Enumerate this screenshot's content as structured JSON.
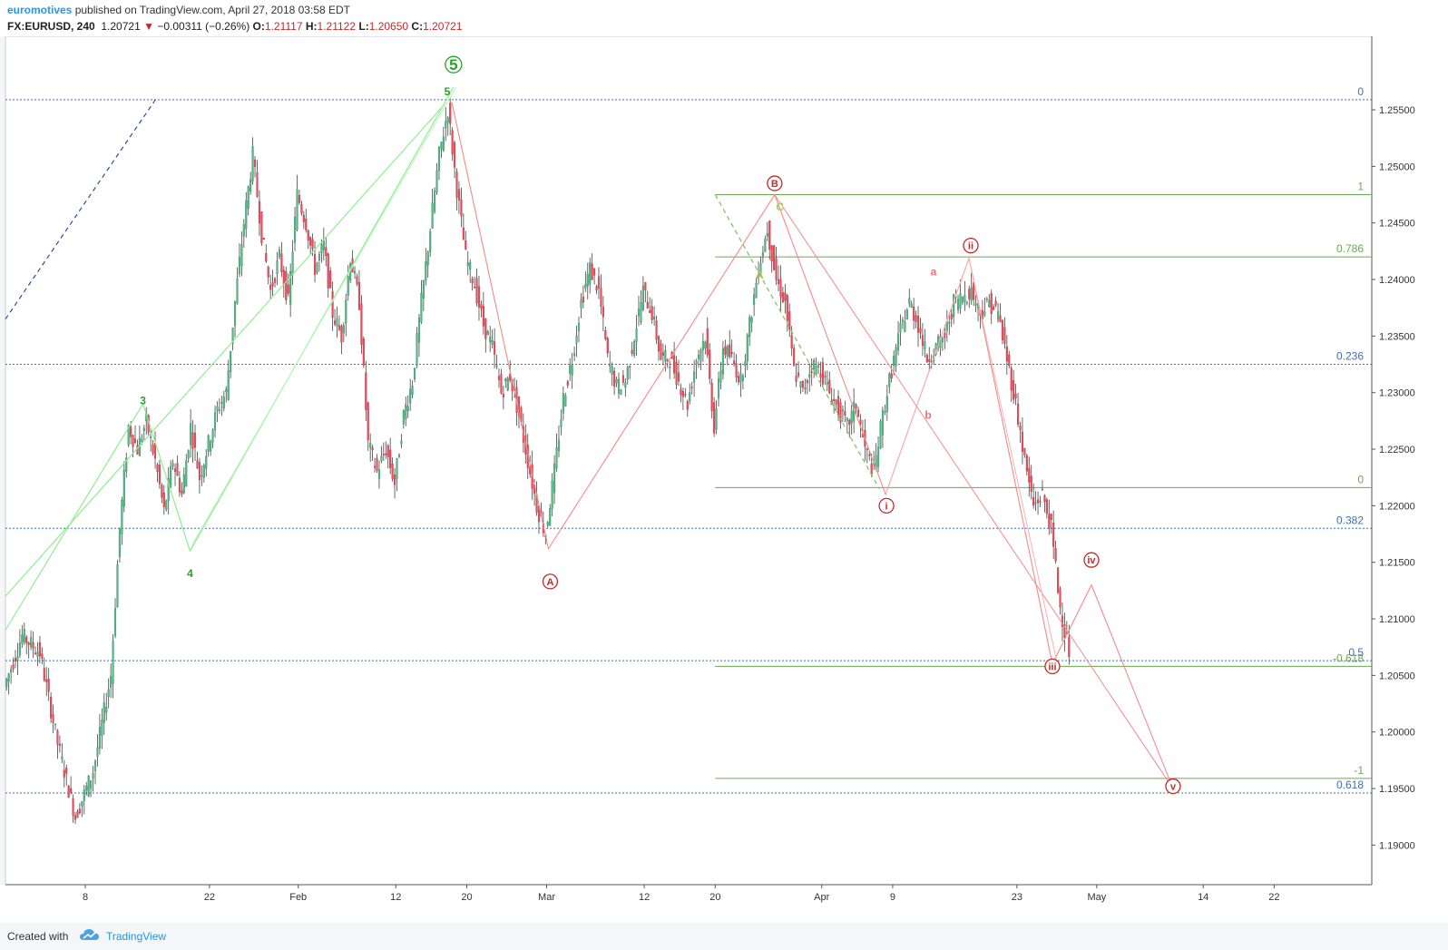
{
  "header": {
    "author": "euromotives",
    "published_text": " published on TradingView.com, April 27, 2018 03:58 EDT",
    "symbol": "FX:EURUSD, 240",
    "last": "1.20721",
    "change": "−0.00311 (−0.26%)",
    "o_label": "O:",
    "o_value": "1.21117",
    "h_label": "H:",
    "h_value": "1.21122",
    "l_label": "L:",
    "l_value": "1.20650",
    "c_label": "C:",
    "c_value": "1.20721"
  },
  "footer": {
    "created_with": "Created with",
    "brand": "TradingView"
  },
  "chart_data": {
    "type": "candlestick",
    "symbol": "FX:EURUSD",
    "timeframe": "240",
    "ylim": [
      1.1865,
      1.2615
    ],
    "y_ticks": [
      "1.25500",
      "1.25000",
      "1.24500",
      "1.24000",
      "1.23500",
      "1.23000",
      "1.22500",
      "1.22000",
      "1.21500",
      "1.21000",
      "1.20500",
      "1.20000",
      "1.19500",
      "1.19000"
    ],
    "y_tick_values": [
      1.255,
      1.25,
      1.245,
      1.24,
      1.235,
      1.23,
      1.225,
      1.22,
      1.215,
      1.21,
      1.205,
      1.2,
      1.195,
      1.19
    ],
    "x_ticks": [
      "8",
      "22",
      "Feb",
      "12",
      "20",
      "Mar",
      "12",
      "20",
      "Apr",
      "9",
      "23",
      "May",
      "14",
      "22"
    ],
    "x_tick_days": [
      -24,
      -10,
      0,
      11,
      19,
      28,
      39,
      47,
      59,
      67,
      81,
      90,
      102,
      110
    ],
    "x_range_days": [
      -33,
      121
    ],
    "price_path": [
      [
        -33,
        1.204
      ],
      [
        -31,
        1.2085
      ],
      [
        -29,
        1.207
      ],
      [
        -27,
        1.199
      ],
      [
        -25,
        1.1925
      ],
      [
        -23,
        1.1965
      ],
      [
        -21,
        1.205
      ],
      [
        -20,
        1.218
      ],
      [
        -19,
        1.227
      ],
      [
        -18,
        1.225
      ],
      [
        -17,
        1.2275
      ],
      [
        -16,
        1.224
      ],
      [
        -15,
        1.2195
      ],
      [
        -14,
        1.224
      ],
      [
        -13,
        1.221
      ],
      [
        -12,
        1.227
      ],
      [
        -11,
        1.2225
      ],
      [
        -10,
        1.2255
      ],
      [
        -9,
        1.2285
      ],
      [
        -8,
        1.23
      ],
      [
        -7,
        1.238
      ],
      [
        -6,
        1.245
      ],
      [
        -5,
        1.251
      ],
      [
        -4,
        1.244
      ],
      [
        -3,
        1.239
      ],
      [
        -2,
        1.242
      ],
      [
        -1,
        1.238
      ],
      [
        0,
        1.2475
      ],
      [
        1,
        1.245
      ],
      [
        2,
        1.241
      ],
      [
        3,
        1.243
      ],
      [
        4,
        1.237
      ],
      [
        5,
        1.235
      ],
      [
        6,
        1.242
      ],
      [
        7,
        1.238
      ],
      [
        8,
        1.2255
      ],
      [
        9,
        1.223
      ],
      [
        10,
        1.225
      ],
      [
        11,
        1.222
      ],
      [
        12,
        1.228
      ],
      [
        13,
        1.231
      ],
      [
        14,
        1.238
      ],
      [
        15,
        1.2445
      ],
      [
        16,
        1.251
      ],
      [
        17,
        1.255
      ],
      [
        18,
        1.248
      ],
      [
        19,
        1.242
      ],
      [
        20,
        1.2395
      ],
      [
        21,
        1.236
      ],
      [
        22,
        1.234
      ],
      [
        23,
        1.23
      ],
      [
        24,
        1.2315
      ],
      [
        25,
        1.228
      ],
      [
        26,
        1.224
      ],
      [
        27,
        1.22
      ],
      [
        28,
        1.2175
      ],
      [
        29,
        1.223
      ],
      [
        30,
        1.2295
      ],
      [
        31,
        1.233
      ],
      [
        32,
        1.238
      ],
      [
        33,
        1.241
      ],
      [
        34,
        1.239
      ],
      [
        35,
        1.233
      ],
      [
        36,
        1.2305
      ],
      [
        37,
        1.231
      ],
      [
        38,
        1.235
      ],
      [
        39,
        1.239
      ],
      [
        40,
        1.237
      ],
      [
        41,
        1.233
      ],
      [
        42,
        1.233
      ],
      [
        43,
        1.231
      ],
      [
        44,
        1.229
      ],
      [
        45,
        1.233
      ],
      [
        46,
        1.235
      ],
      [
        47,
        1.227
      ],
      [
        48,
        1.234
      ],
      [
        49,
        1.233
      ],
      [
        50,
        1.231
      ],
      [
        51,
        1.236
      ],
      [
        52,
        1.241
      ],
      [
        53,
        1.2445
      ],
      [
        54,
        1.24
      ],
      [
        55,
        1.238
      ],
      [
        56,
        1.232
      ],
      [
        57,
        1.23
      ],
      [
        58,
        1.2325
      ],
      [
        59,
        1.232
      ],
      [
        60,
        1.23
      ],
      [
        61,
        1.2285
      ],
      [
        62,
        1.227
      ],
      [
        63,
        1.229
      ],
      [
        64,
        1.225
      ],
      [
        65,
        1.223
      ],
      [
        66,
        1.228
      ],
      [
        67,
        1.232
      ],
      [
        68,
        1.2355
      ],
      [
        69,
        1.238
      ],
      [
        70,
        1.236
      ],
      [
        71,
        1.233
      ],
      [
        72,
        1.234
      ],
      [
        73,
        1.235
      ],
      [
        74,
        1.238
      ],
      [
        75,
        1.2385
      ],
      [
        76,
        1.239
      ],
      [
        77,
        1.237
      ],
      [
        78,
        1.238
      ],
      [
        79,
        1.237
      ],
      [
        80,
        1.233
      ],
      [
        81,
        1.229
      ],
      [
        82,
        1.224
      ],
      [
        83,
        1.22
      ],
      [
        84,
        1.221
      ],
      [
        85,
        1.218
      ],
      [
        86,
        1.211
      ],
      [
        87,
        1.2072
      ]
    ],
    "horizontal_levels": [
      {
        "label": "0",
        "price": 1.2559,
        "style": "dotted",
        "color": "#3f6fb5"
      },
      {
        "label": "0.236",
        "price": 1.2325,
        "style": "dotted",
        "color": "#3f6fb5"
      },
      {
        "label": "0.382",
        "price": 1.218,
        "style": "dotted",
        "color": "#3f6fb5"
      },
      {
        "label": "0.5",
        "price": 1.2063,
        "style": "dotted",
        "color": "#3f6fb5"
      },
      {
        "label": "0.618",
        "price": 1.1946,
        "style": "dotted",
        "color": "#3f6fb5"
      },
      {
        "label": "1",
        "price": 1.2475,
        "style": "solid",
        "color": "#6aaa4f"
      },
      {
        "label": "0.786",
        "price": 1.242,
        "style": "solid",
        "color": "#6aaa4f"
      },
      {
        "label": "0",
        "price": 1.2216,
        "style": "solid",
        "color": "#6aaa4f"
      },
      {
        "label": "-0.618",
        "price": 1.2058,
        "style": "solid",
        "color": "#6aaa4f"
      },
      {
        "label": "-1",
        "price": 1.1959,
        "style": "solid",
        "color": "#6aaa4f"
      }
    ],
    "wave_labels": [
      {
        "text": "5",
        "day": 17.5,
        "price": 1.259,
        "color": "#2ca02c",
        "circled": true
      },
      {
        "text": "5",
        "day": 16.8,
        "price": 1.2566,
        "color": "#2ca02c",
        "circled": false
      },
      {
        "text": "3",
        "day": -17.5,
        "price": 1.2293,
        "color": "#2ca02c",
        "circled": false
      },
      {
        "text": "4",
        "day": -12.2,
        "price": 1.214,
        "color": "#2ca02c",
        "circled": false
      },
      {
        "text": "A",
        "day": 28.4,
        "price": 1.2133,
        "color": "#c62828",
        "circled": true
      },
      {
        "text": "B",
        "day": 53.7,
        "price": 1.2485,
        "color": "#c62828",
        "circled": true
      },
      {
        "text": "i",
        "day": 66.3,
        "price": 1.22,
        "color": "#c62828",
        "circled": true
      },
      {
        "text": "ii",
        "day": 75.8,
        "price": 1.243,
        "color": "#c62828",
        "circled": true
      },
      {
        "text": "iii",
        "day": 85.0,
        "price": 1.2058,
        "color": "#c62828",
        "circled": true
      },
      {
        "text": "iv",
        "day": 89.4,
        "price": 1.2152,
        "color": "#c62828",
        "circled": true
      },
      {
        "text": "v",
        "day": 98.6,
        "price": 1.1952,
        "color": "#c62828",
        "circled": true
      },
      {
        "text": "a",
        "day": 71.6,
        "price": 1.2407,
        "color": "#e57373",
        "circled": false
      },
      {
        "text": "b",
        "day": 71.0,
        "price": 1.228,
        "color": "#e57373",
        "circled": false
      },
      {
        "text": "A",
        "day": 52.0,
        "price": 1.2404,
        "color": "#9ccc65",
        "circled": false
      },
      {
        "text": "C",
        "day": 54.3,
        "price": 1.2464,
        "color": "#9ccc65",
        "circled": false
      }
    ]
  }
}
